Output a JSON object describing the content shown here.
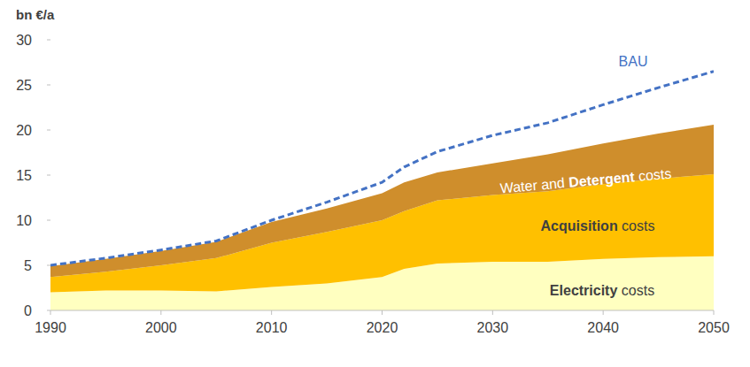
{
  "chart_data": {
    "type": "area",
    "stacked": true,
    "y_label": "bn €/a",
    "x": [
      1990,
      1995,
      2000,
      2005,
      2010,
      2015,
      2020,
      2022,
      2025,
      2030,
      2035,
      2040,
      2045,
      2050
    ],
    "xlim": [
      1990,
      2050
    ],
    "xticks": [
      1990,
      2000,
      2010,
      2020,
      2030,
      2040,
      2050
    ],
    "ylim": [
      0,
      30
    ],
    "yticks": [
      0,
      5,
      10,
      15,
      20,
      25,
      30
    ],
    "grid": false,
    "series": [
      {
        "name": "Electricity costs",
        "type": "area",
        "color": "#ffffc0",
        "values": [
          2.0,
          2.2,
          2.2,
          2.1,
          2.6,
          3.0,
          3.7,
          4.6,
          5.2,
          5.4,
          5.4,
          5.7,
          5.9,
          6.0
        ]
      },
      {
        "name": "Acquisition costs",
        "type": "area",
        "color": "#ffc000",
        "values": [
          1.7,
          2.1,
          2.8,
          3.7,
          4.9,
          5.7,
          6.3,
          6.4,
          7.0,
          7.4,
          7.8,
          8.3,
          8.7,
          9.1
        ]
      },
      {
        "name": "Water and Detergent costs",
        "type": "area",
        "color": "#cf8e2c",
        "values": [
          1.2,
          1.4,
          1.6,
          1.8,
          2.3,
          2.6,
          3.0,
          3.2,
          3.1,
          3.5,
          4.1,
          4.5,
          5.0,
          5.5
        ]
      },
      {
        "name": "BAU",
        "type": "line",
        "color": "#4472c4",
        "line_style": "dashed",
        "values": [
          5.0,
          5.8,
          6.7,
          7.7,
          10.0,
          12.0,
          14.2,
          15.9,
          17.6,
          19.4,
          20.8,
          22.8,
          24.7,
          26.5
        ]
      }
    ]
  }
}
